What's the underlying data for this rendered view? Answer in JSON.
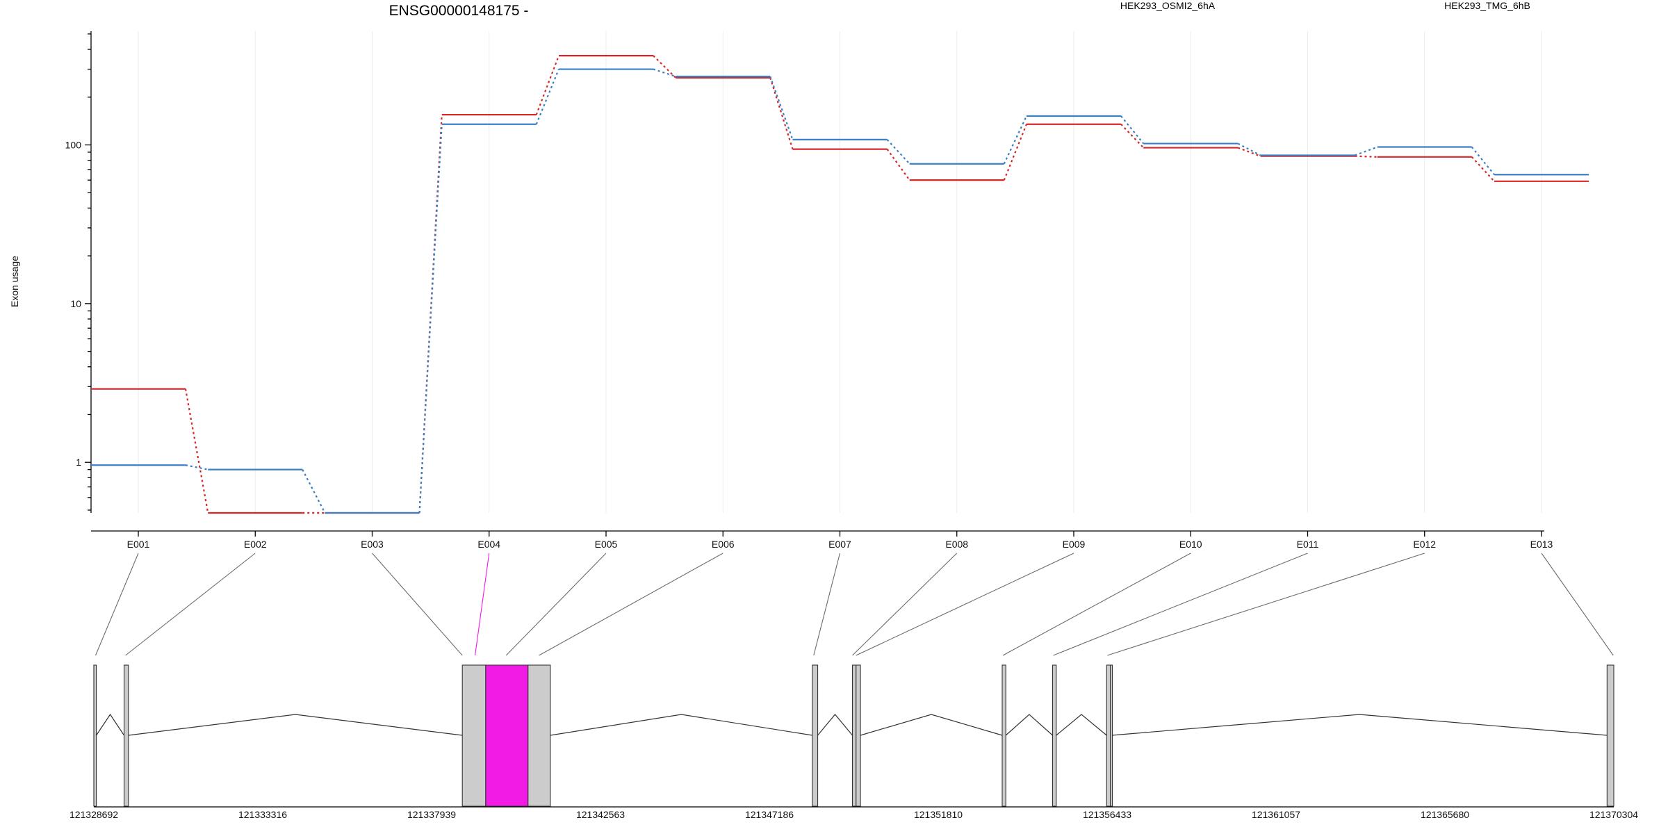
{
  "chart_data": {
    "type": "line",
    "title": "ENSG00000148175 -",
    "ylabel": "Exon usage",
    "xlabel": "",
    "y_scale": "log",
    "ylim": [
      0.48,
      520
    ],
    "y_ticks": [
      {
        "value": 1,
        "label": "1"
      },
      {
        "value": 10,
        "label": "10"
      },
      {
        "value": 100,
        "label": "100"
      }
    ],
    "grid": "vertical",
    "legend": "top-right",
    "categories": [
      "E001",
      "E002",
      "E003",
      "E004",
      "E005",
      "E006",
      "E007",
      "E008",
      "E009",
      "E010",
      "E011",
      "E012",
      "E013"
    ],
    "series": [
      {
        "name": "HEK293_OSMI2_6hA",
        "color": "#d62728",
        "values": [
          2.9,
          0.48,
          0.48,
          155,
          365,
          265,
          94,
          60,
          135,
          96,
          85,
          84,
          59
        ]
      },
      {
        "name": "HEK293_TMG_6hB",
        "color": "#3b7fc4",
        "values": [
          0.96,
          0.9,
          0.48,
          135,
          300,
          270,
          108,
          76,
          152,
          102,
          86,
          97,
          65
        ]
      }
    ],
    "highlight_color": "#f21be6",
    "gene_model": {
      "genomic_ticks": [
        "121328692",
        "121333316",
        "121337939",
        "121342563",
        "121347186",
        "121351810",
        "121356433",
        "121361057",
        "121365680",
        "121370304"
      ],
      "genomic_range": [
        121328692,
        121370304
      ],
      "exons": [
        {
          "id": "E001",
          "start": 121328692,
          "end": 121328760,
          "highlight": false
        },
        {
          "id": "E002",
          "start": 121329520,
          "end": 121329640,
          "highlight": false
        },
        {
          "id": "E003",
          "start": 121338780,
          "end": 121339420,
          "highlight": false
        },
        {
          "id": "E004",
          "start": 121339420,
          "end": 121340580,
          "highlight": true
        },
        {
          "id": "E005",
          "start": 121340580,
          "end": 121341190,
          "highlight": false
        },
        {
          "id": "E006",
          "start": 121348360,
          "end": 121348510,
          "highlight": false
        },
        {
          "id": "E007",
          "start": 121349460,
          "end": 121349560,
          "highlight": false
        },
        {
          "id": "E008",
          "start": 121349560,
          "end": 121349680,
          "highlight": false
        },
        {
          "id": "E009",
          "start": 121353560,
          "end": 121353660,
          "highlight": false
        },
        {
          "id": "E010",
          "start": 121354940,
          "end": 121355040,
          "highlight": false
        },
        {
          "id": "E011",
          "start": 121356420,
          "end": 121356520,
          "highlight": false
        },
        {
          "id": "E012",
          "start": 121356520,
          "end": 121356560,
          "highlight": false
        },
        {
          "id": "E013",
          "start": 121370120,
          "end": 121370304,
          "highlight": false
        }
      ],
      "introns": [
        [
          121328760,
          121329520
        ],
        [
          121329640,
          121338780
        ],
        [
          121341190,
          121348360
        ],
        [
          121348510,
          121349460
        ],
        [
          121349680,
          121353560
        ],
        [
          121353660,
          121354940
        ],
        [
          121355040,
          121356420
        ],
        [
          121356560,
          121370120
        ]
      ],
      "connectors": [
        {
          "exon": "E001",
          "genomic": 121328740
        },
        {
          "exon": "E002",
          "genomic": 121329560
        },
        {
          "exon": "E003",
          "genomic": 121338780
        },
        {
          "exon": "E004",
          "genomic": 121339130
        },
        {
          "exon": "E005",
          "genomic": 121339980
        },
        {
          "exon": "E006",
          "genomic": 121340880
        },
        {
          "exon": "E007",
          "genomic": 121348400
        },
        {
          "exon": "E008",
          "genomic": 121349460
        },
        {
          "exon": "E009",
          "genomic": 121349560
        },
        {
          "exon": "E010",
          "genomic": 121353580
        },
        {
          "exon": "E011",
          "genomic": 121354960
        },
        {
          "exon": "E012",
          "genomic": 121356440
        },
        {
          "exon": "E013",
          "genomic": 121370290
        }
      ]
    }
  }
}
